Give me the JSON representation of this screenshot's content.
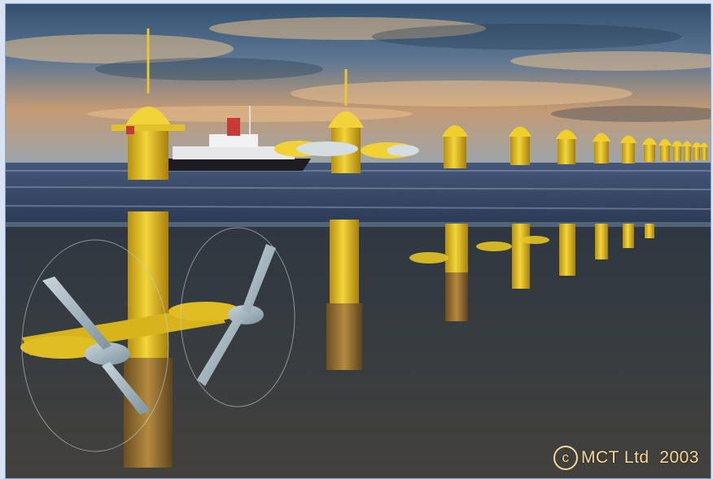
{
  "image": {
    "description_icon": "tidal-turbine-array-illustration",
    "colors": {
      "turbine_yellow": "#e5c21d",
      "sea_surface": "#3d4f6c",
      "seabed": "#3a3d3c",
      "sky_top": "#3c5a78",
      "sky_glow": "#e0b27a"
    }
  },
  "caption": {
    "symbol": "c",
    "text": "MCT Ltd  2003"
  }
}
